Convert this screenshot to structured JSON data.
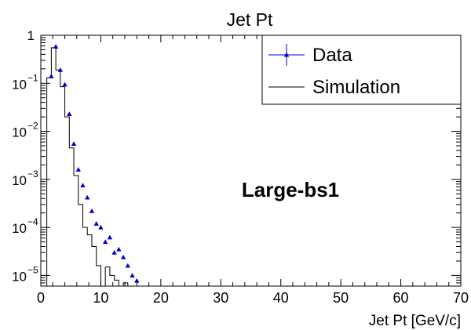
{
  "chart_data": {
    "type": "line",
    "title": "Jet Pt",
    "xlabel": "Jet Pt [GeV/c]",
    "ylabel": "",
    "xlim": [
      0,
      70
    ],
    "ylim": [
      6e-06,
      1
    ],
    "yscale": "log",
    "grid": false,
    "legend_position": "top-right",
    "annotation": "Large-bs1",
    "x_ticks": [
      "0",
      "10",
      "20",
      "30",
      "40",
      "50",
      "60",
      "70"
    ],
    "y_ticks": [
      {
        "label": "1",
        "value": 1
      },
      {
        "label": "10",
        "exp": "−1",
        "value": 0.1
      },
      {
        "label": "10",
        "exp": "−2",
        "value": 0.01
      },
      {
        "label": "10",
        "exp": "−3",
        "value": 0.001
      },
      {
        "label": "10",
        "exp": "−4",
        "value": 0.0001
      },
      {
        "label": "10",
        "exp": "−5",
        "value": 1e-05
      }
    ],
    "series": [
      {
        "name": "Data",
        "kind": "markers",
        "color": "#0000cc",
        "x": [
          1.75,
          2.5,
          3.25,
          4.0,
          4.75,
          5.5,
          6.25,
          7.0,
          7.75,
          8.5,
          9.25,
          10.0,
          10.75,
          11.5,
          12.25,
          13.0,
          13.75,
          14.5,
          15.25,
          16.0
        ],
        "y": [
          0.14,
          0.58,
          0.19,
          0.095,
          0.023,
          0.0055,
          0.0016,
          0.00075,
          0.00042,
          0.00022,
          0.00012,
          0.0001,
          5e-05,
          6.2e-05,
          3e-05,
          3.5e-05,
          2.4e-05,
          1.6e-05,
          1e-05,
          7.8e-06
        ]
      },
      {
        "name": "Simulation",
        "kind": "step",
        "color": "#000000",
        "edges": [
          1.0,
          1.75,
          2.5,
          3.25,
          4.0,
          4.75,
          5.5,
          6.25,
          7.0,
          7.75,
          8.5,
          9.25,
          10.0,
          10.75,
          11.5,
          12.25,
          13.0,
          13.75,
          14.5,
          15.25,
          16.0
        ],
        "y": [
          0.13,
          0.55,
          0.19,
          0.085,
          0.02,
          0.0045,
          0.0012,
          0.0003,
          0.0001,
          7e-05,
          4e-05,
          1.6e-05,
          null,
          1.5e-05,
          1e-05,
          8e-06,
          null,
          7e-06,
          null,
          null
        ]
      }
    ]
  }
}
